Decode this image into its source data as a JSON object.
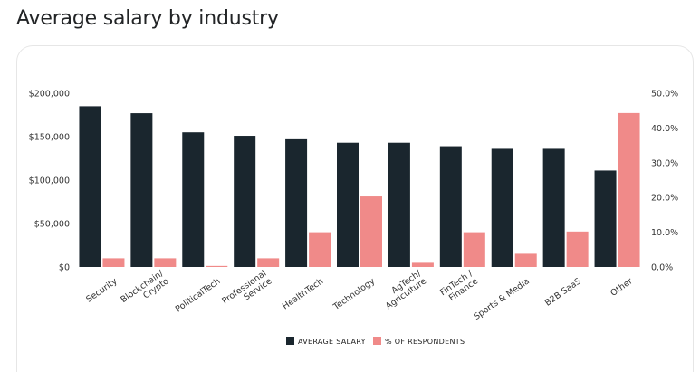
{
  "page": {
    "title": "Average salary by industry"
  },
  "chart_data": {
    "type": "bar",
    "title": "Average salary by industry",
    "categories": [
      [
        "Security"
      ],
      [
        "Blockchain/",
        "Crypto"
      ],
      [
        "PoliticalTech"
      ],
      [
        "Professional",
        "Service"
      ],
      [
        "HealthTech"
      ],
      [
        "Technology"
      ],
      [
        "AgTech/",
        "Agriculture"
      ],
      [
        "FinTech /",
        "Finance"
      ],
      [
        "Sports & Media"
      ],
      [
        "B2B SaaS"
      ],
      [
        "Other"
      ]
    ],
    "series": [
      {
        "name": "AVERAGE SALARY",
        "axis": "left",
        "color": "#1a262e",
        "values": [
          185000,
          177000,
          155000,
          151000,
          147000,
          143000,
          143000,
          139000,
          136000,
          136000,
          111000
        ]
      },
      {
        "name": "% OF RESPONDENTS",
        "axis": "right",
        "color": "#f08a89",
        "values": [
          2.5,
          2.5,
          0.3,
          2.5,
          10.0,
          20.3,
          1.2,
          10.0,
          3.8,
          10.2,
          44.3
        ]
      }
    ],
    "y_left": {
      "min": 0,
      "max": 200000,
      "ticks": [
        "$0",
        "$50,000",
        "$100,000",
        "$150,000",
        "$200,000"
      ]
    },
    "y_right": {
      "min": 0,
      "max": 50,
      "ticks": [
        "0.0%",
        "10.0%",
        "20.0%",
        "30.0%",
        "40.0%",
        "50.0%"
      ]
    },
    "grid": false,
    "legend_position": "bottom"
  }
}
